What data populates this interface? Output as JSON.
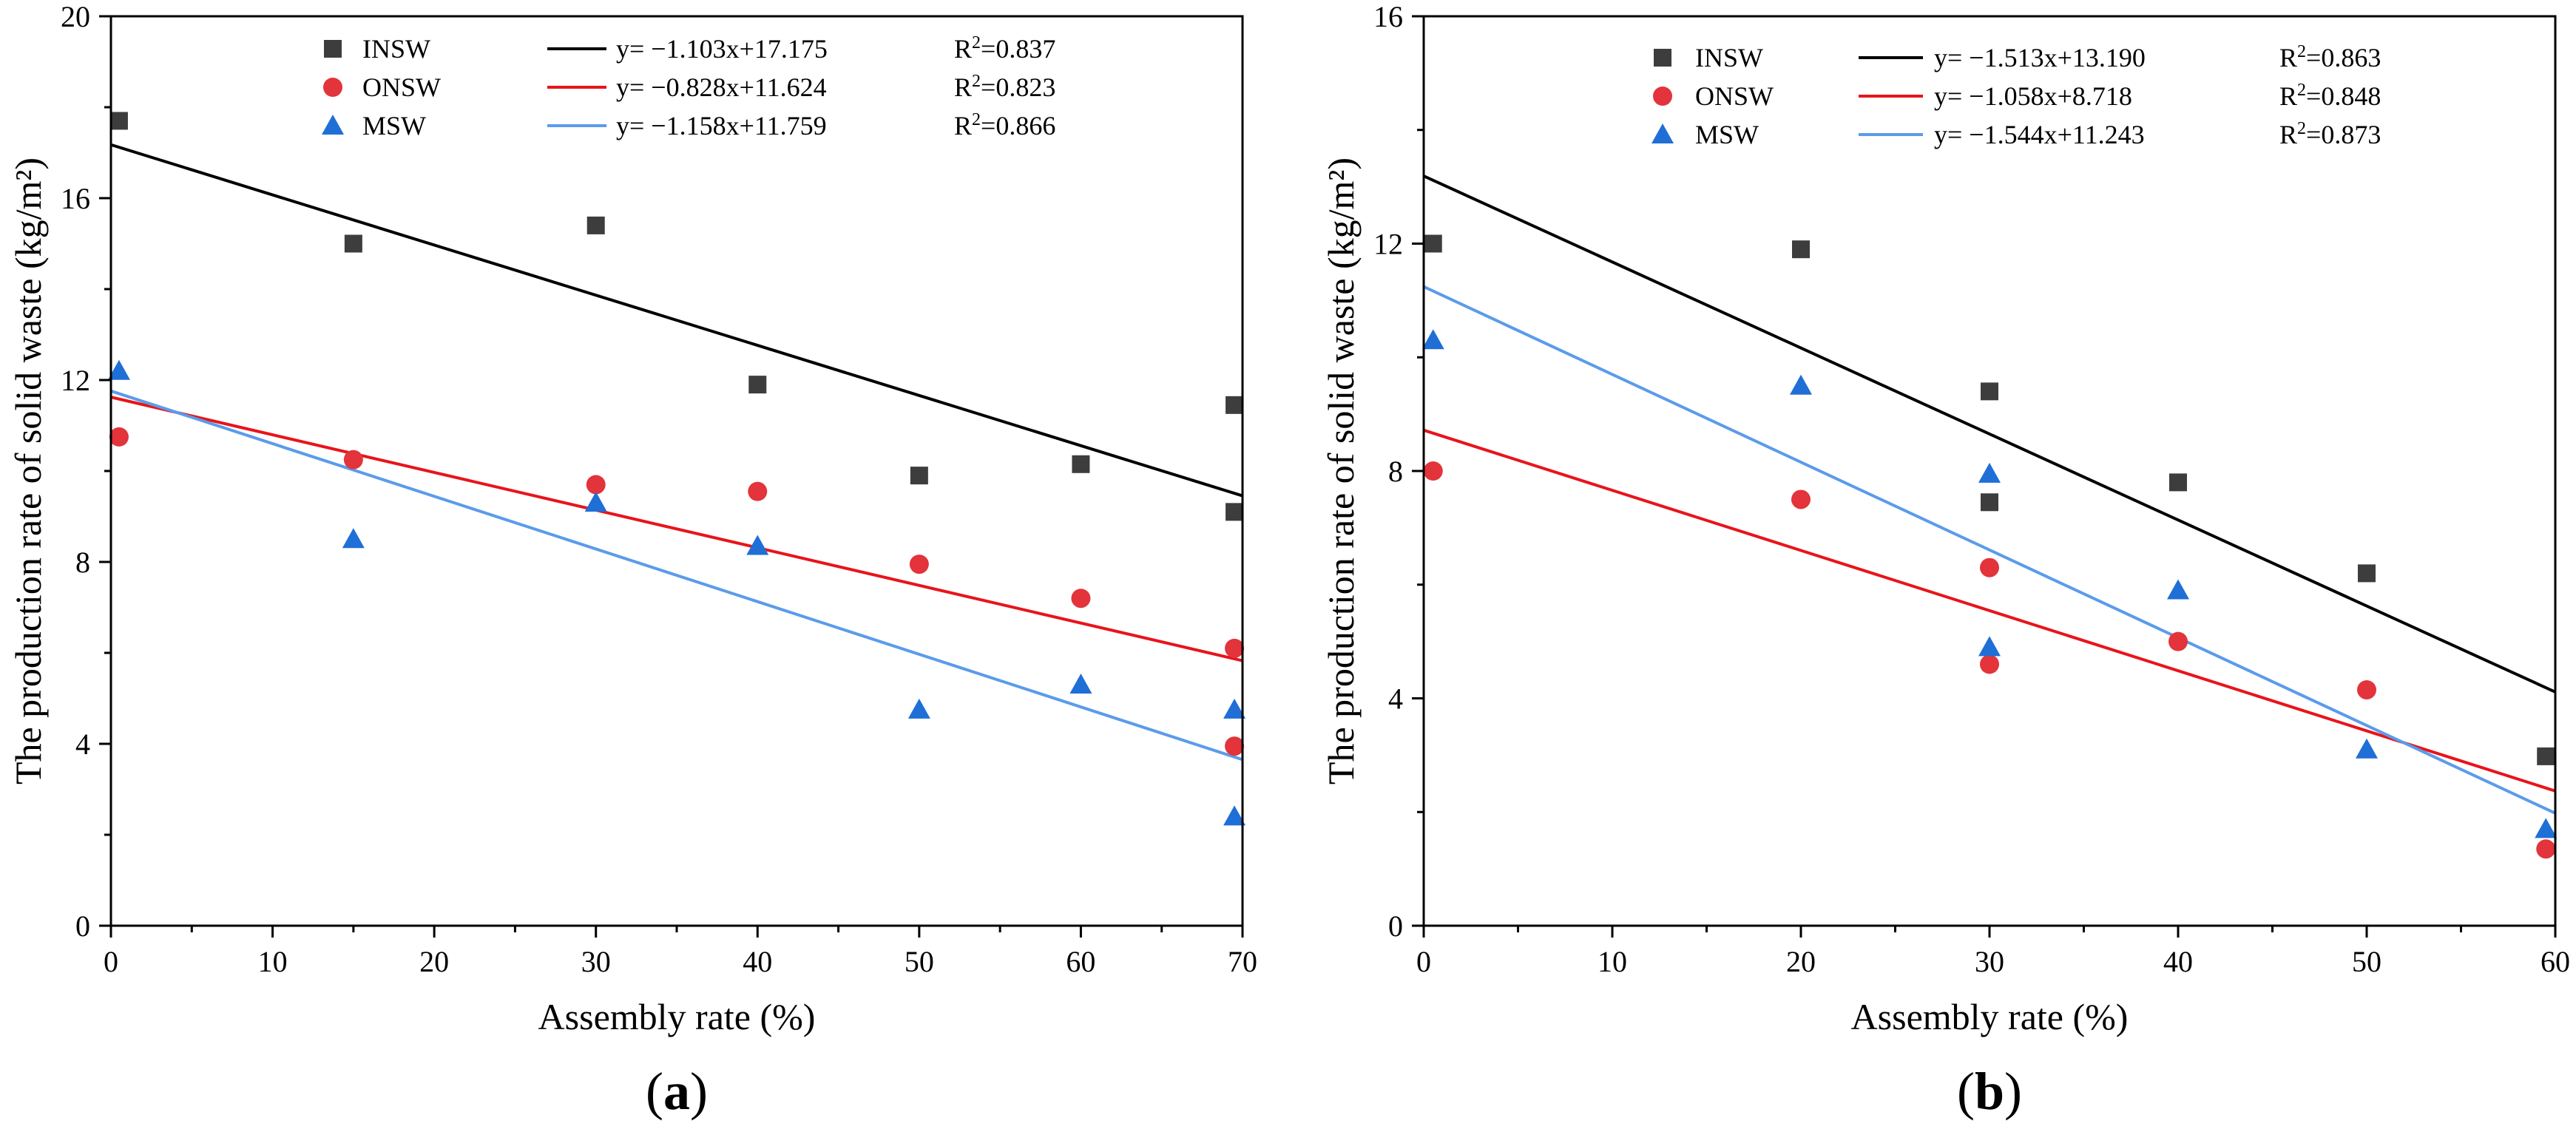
{
  "chart_data": [
    {
      "type": "scatter",
      "panel_label": "a",
      "xlabel": "Assembly rate (%)",
      "ylabel": "The production rate of solid waste (kg/m²)",
      "xlim": [
        0,
        70
      ],
      "ylim": [
        0,
        20
      ],
      "xticks": [
        "0",
        "10",
        "20",
        "30",
        "40",
        "50",
        "60",
        "70"
      ],
      "yticks": [
        "0",
        "4",
        "8",
        "12",
        "16",
        "20"
      ],
      "series": [
        {
          "name": "INSW",
          "marker": "square",
          "color": "#3d3d3d",
          "points": [
            [
              0.5,
              17.7
            ],
            [
              15,
              15.0
            ],
            [
              30,
              15.4
            ],
            [
              40,
              11.9
            ],
            [
              50,
              9.9
            ],
            [
              60,
              10.15
            ],
            [
              69.5,
              11.45
            ],
            [
              69.5,
              9.1
            ]
          ]
        },
        {
          "name": "ONSW",
          "marker": "circle",
          "color": "#e3333b",
          "points": [
            [
              0.5,
              10.75
            ],
            [
              15,
              10.25
            ],
            [
              30,
              9.7
            ],
            [
              40,
              9.55
            ],
            [
              50,
              7.95
            ],
            [
              60,
              7.2
            ],
            [
              69.5,
              6.1
            ],
            [
              69.5,
              3.95
            ]
          ]
        },
        {
          "name": "MSW",
          "marker": "triangle",
          "color": "#1f6fd6",
          "points": [
            [
              0.5,
              12.2
            ],
            [
              15,
              8.5
            ],
            [
              30,
              9.3
            ],
            [
              40,
              8.35
            ],
            [
              50,
              4.75
            ],
            [
              60,
              5.3
            ],
            [
              69.5,
              4.75
            ],
            [
              69.5,
              2.4
            ]
          ]
        }
      ],
      "fits": [
        {
          "name": "INSW",
          "color": "#000000",
          "slope": -1.103,
          "intercept": 17.175,
          "equation": "y= −1.103x+17.175",
          "r2": "0.837"
        },
        {
          "name": "ONSW",
          "color": "#e8141b",
          "slope": -0.828,
          "intercept": 11.624,
          "equation": "y= −0.828x+11.624",
          "r2": "0.823"
        },
        {
          "name": "MSW",
          "color": "#5b9bea",
          "slope": -1.158,
          "intercept": 11.759,
          "equation": "y= −1.158x+11.759",
          "r2": "0.866"
        }
      ]
    },
    {
      "type": "scatter",
      "panel_label": "b",
      "xlabel": "Assembly rate (%)",
      "ylabel": "The production rate of solid waste (kg/m²)",
      "xlim": [
        0,
        60
      ],
      "ylim": [
        0,
        16
      ],
      "xticks": [
        "0",
        "10",
        "20",
        "30",
        "40",
        "50",
        "60"
      ],
      "yticks": [
        "0",
        "4",
        "8",
        "12",
        "16"
      ],
      "series": [
        {
          "name": "INSW",
          "marker": "square",
          "color": "#3d3d3d",
          "points": [
            [
              0.5,
              12.0
            ],
            [
              20,
              11.9
            ],
            [
              30,
              9.4
            ],
            [
              30,
              7.45
            ],
            [
              40,
              7.8
            ],
            [
              50,
              6.2
            ],
            [
              59.5,
              2.98
            ]
          ]
        },
        {
          "name": "ONSW",
          "marker": "circle",
          "color": "#e3333b",
          "points": [
            [
              0.5,
              8.0
            ],
            [
              20,
              7.5
            ],
            [
              30,
              6.3
            ],
            [
              30,
              4.6
            ],
            [
              40,
              5.0
            ],
            [
              50,
              4.15
            ],
            [
              59.5,
              1.35
            ]
          ]
        },
        {
          "name": "MSW",
          "marker": "triangle",
          "color": "#1f6fd6",
          "points": [
            [
              0.5,
              10.3
            ],
            [
              20,
              9.5
            ],
            [
              30,
              7.95
            ],
            [
              30,
              4.9
            ],
            [
              40,
              5.9
            ],
            [
              50,
              3.1
            ],
            [
              59.5,
              1.7
            ]
          ]
        }
      ],
      "fits": [
        {
          "name": "INSW",
          "color": "#000000",
          "slope": -1.513,
          "intercept": 13.19,
          "equation": "y= −1.513x+13.190",
          "r2": "0.863"
        },
        {
          "name": "ONSW",
          "color": "#e8141b",
          "slope": -1.058,
          "intercept": 8.718,
          "equation": "y= −1.058x+8.718",
          "r2": "0.848"
        },
        {
          "name": "MSW",
          "color": "#5b9bea",
          "slope": -1.544,
          "intercept": 11.243,
          "equation": "y= −1.544x+11.243",
          "r2": "0.873"
        }
      ]
    }
  ]
}
